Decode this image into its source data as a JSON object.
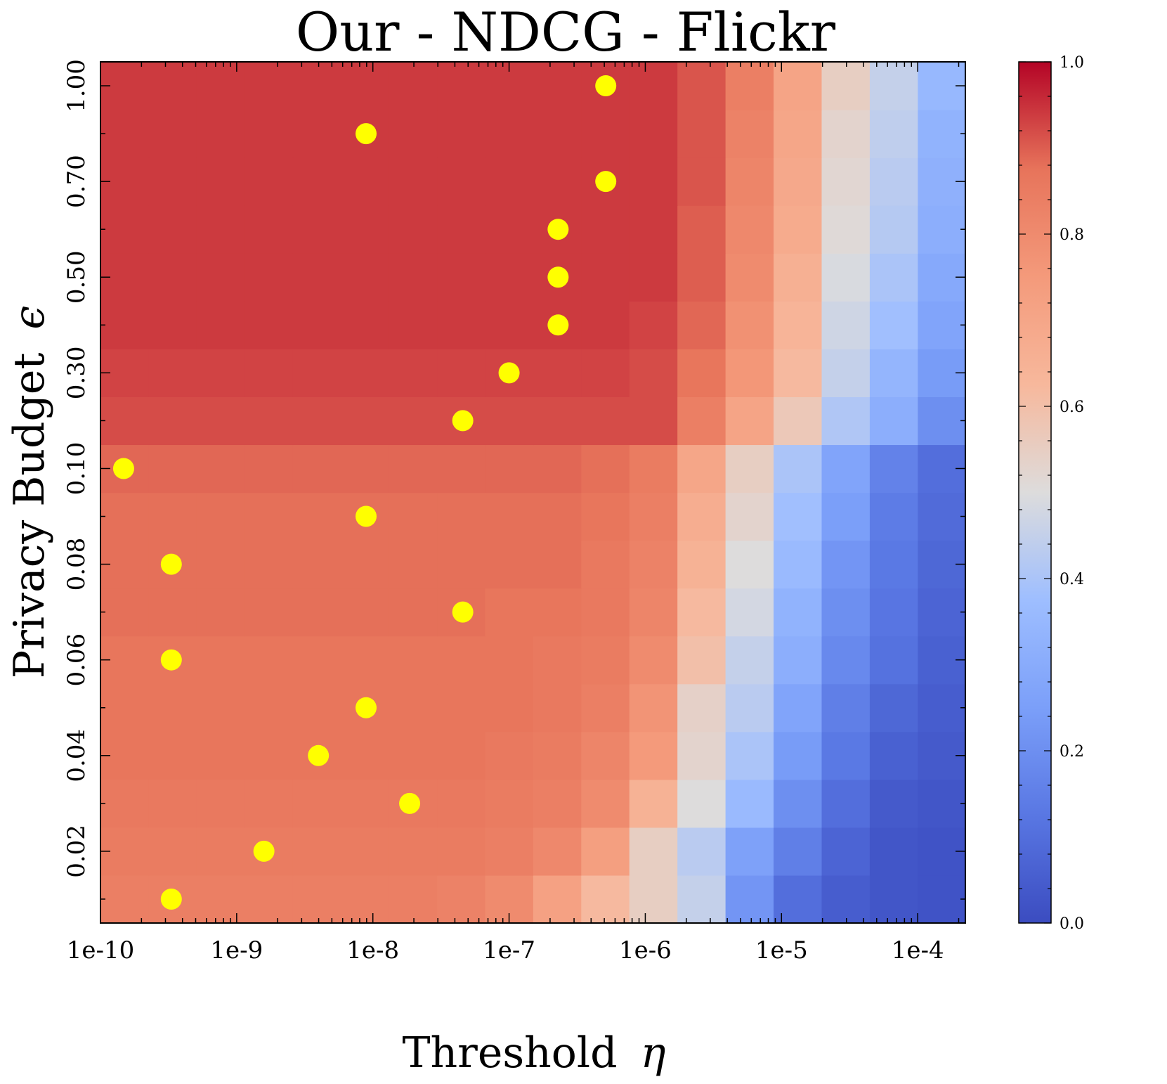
{
  "chart_data": {
    "type": "heatmap",
    "title": "Our - NDCG - Flickr",
    "xlabel": "Threshold",
    "xlabel_symbol": "η",
    "ylabel": "Privacy Budget",
    "ylabel_symbol": "ϵ",
    "x_scale": "log",
    "x_range_log10": [
      -10.0,
      -3.65
    ],
    "x_ticks": [
      {
        "label": "1e-10",
        "log10": -10
      },
      {
        "label": "1e-9",
        "log10": -9
      },
      {
        "label": "1e-8",
        "log10": -8
      },
      {
        "label": "1e-7",
        "log10": -7
      },
      {
        "label": "1e-6",
        "log10": -6
      },
      {
        "label": "1e-5",
        "log10": -5
      },
      {
        "label": "1e-4",
        "log10": -4
      }
    ],
    "y_rows": [
      "0.01",
      "0.02",
      "0.03",
      "0.04",
      "0.05",
      "0.06",
      "0.07",
      "0.08",
      "0.09",
      "0.10",
      "0.20",
      "0.30",
      "0.40",
      "0.50",
      "0.60",
      "0.70",
      "0.80",
      "1.00"
    ],
    "y_tick_labels": [
      {
        "label": "0.02",
        "row": 1
      },
      {
        "label": "0.04",
        "row": 3
      },
      {
        "label": "0.06",
        "row": 5
      },
      {
        "label": "0.08",
        "row": 7
      },
      {
        "label": "0.10",
        "row": 9
      },
      {
        "label": "0.30",
        "row": 11
      },
      {
        "label": "0.50",
        "row": 13
      },
      {
        "label": "0.70",
        "row": 15
      },
      {
        "label": "1.00",
        "row": 17
      }
    ],
    "n_columns": 18,
    "column_log10_edges": [
      -10.0,
      -9.647,
      -9.294,
      -8.941,
      -8.588,
      -8.235,
      -7.882,
      -7.529,
      -7.176,
      -6.823,
      -6.47,
      -6.117,
      -5.764,
      -5.411,
      -5.058,
      -4.705,
      -4.352,
      -3.999,
      -3.65
    ],
    "values_by_row_bottom_to_top": [
      [
        0.84,
        0.84,
        0.84,
        0.84,
        0.84,
        0.84,
        0.84,
        0.83,
        0.8,
        0.72,
        0.62,
        0.55,
        0.45,
        0.22,
        0.1,
        0.05,
        0.03,
        0.02
      ],
      [
        0.85,
        0.85,
        0.85,
        0.85,
        0.85,
        0.85,
        0.85,
        0.85,
        0.84,
        0.81,
        0.73,
        0.55,
        0.43,
        0.26,
        0.15,
        0.07,
        0.03,
        0.02
      ],
      [
        0.86,
        0.86,
        0.86,
        0.86,
        0.86,
        0.86,
        0.86,
        0.86,
        0.85,
        0.84,
        0.8,
        0.65,
        0.5,
        0.36,
        0.2,
        0.1,
        0.04,
        0.03
      ],
      [
        0.87,
        0.87,
        0.87,
        0.87,
        0.87,
        0.87,
        0.87,
        0.87,
        0.86,
        0.85,
        0.82,
        0.75,
        0.53,
        0.4,
        0.24,
        0.13,
        0.06,
        0.04
      ],
      [
        0.87,
        0.87,
        0.87,
        0.87,
        0.87,
        0.87,
        0.87,
        0.87,
        0.87,
        0.86,
        0.84,
        0.77,
        0.54,
        0.43,
        0.27,
        0.15,
        0.08,
        0.05
      ],
      [
        0.87,
        0.87,
        0.87,
        0.87,
        0.87,
        0.87,
        0.87,
        0.87,
        0.87,
        0.86,
        0.85,
        0.8,
        0.6,
        0.45,
        0.31,
        0.18,
        0.11,
        0.06
      ],
      [
        0.88,
        0.88,
        0.88,
        0.88,
        0.88,
        0.88,
        0.88,
        0.88,
        0.87,
        0.87,
        0.86,
        0.82,
        0.62,
        0.48,
        0.33,
        0.2,
        0.12,
        0.07
      ],
      [
        0.88,
        0.88,
        0.88,
        0.88,
        0.88,
        0.88,
        0.88,
        0.88,
        0.88,
        0.88,
        0.86,
        0.83,
        0.65,
        0.5,
        0.36,
        0.22,
        0.13,
        0.08
      ],
      [
        0.88,
        0.88,
        0.88,
        0.88,
        0.88,
        0.88,
        0.88,
        0.88,
        0.88,
        0.88,
        0.87,
        0.84,
        0.67,
        0.53,
        0.38,
        0.25,
        0.14,
        0.09
      ],
      [
        0.89,
        0.89,
        0.89,
        0.89,
        0.89,
        0.89,
        0.89,
        0.89,
        0.89,
        0.89,
        0.88,
        0.85,
        0.7,
        0.55,
        0.4,
        0.27,
        0.16,
        0.1
      ],
      [
        0.92,
        0.92,
        0.92,
        0.92,
        0.92,
        0.92,
        0.92,
        0.92,
        0.92,
        0.92,
        0.92,
        0.92,
        0.84,
        0.71,
        0.57,
        0.41,
        0.31,
        0.2
      ],
      [
        0.93,
        0.93,
        0.93,
        0.93,
        0.93,
        0.93,
        0.93,
        0.93,
        0.93,
        0.93,
        0.93,
        0.92,
        0.87,
        0.76,
        0.62,
        0.45,
        0.34,
        0.24
      ],
      [
        0.94,
        0.94,
        0.94,
        0.94,
        0.94,
        0.94,
        0.94,
        0.94,
        0.94,
        0.94,
        0.94,
        0.93,
        0.89,
        0.78,
        0.64,
        0.47,
        0.38,
        0.27
      ],
      [
        0.94,
        0.94,
        0.94,
        0.94,
        0.94,
        0.94,
        0.94,
        0.94,
        0.94,
        0.94,
        0.94,
        0.94,
        0.9,
        0.8,
        0.66,
        0.49,
        0.4,
        0.29
      ],
      [
        0.94,
        0.94,
        0.94,
        0.94,
        0.94,
        0.94,
        0.94,
        0.94,
        0.94,
        0.94,
        0.94,
        0.94,
        0.9,
        0.81,
        0.68,
        0.51,
        0.42,
        0.31
      ],
      [
        0.94,
        0.94,
        0.94,
        0.94,
        0.94,
        0.94,
        0.94,
        0.94,
        0.94,
        0.94,
        0.94,
        0.94,
        0.91,
        0.82,
        0.69,
        0.52,
        0.43,
        0.32
      ],
      [
        0.94,
        0.94,
        0.94,
        0.94,
        0.94,
        0.94,
        0.94,
        0.94,
        0.94,
        0.94,
        0.94,
        0.94,
        0.91,
        0.83,
        0.7,
        0.53,
        0.44,
        0.33
      ],
      [
        0.94,
        0.94,
        0.94,
        0.94,
        0.94,
        0.94,
        0.94,
        0.94,
        0.94,
        0.94,
        0.94,
        0.94,
        0.91,
        0.84,
        0.71,
        0.55,
        0.45,
        0.35
      ]
    ],
    "markers": {
      "color": "#ffff00",
      "description": "optimal threshold per privacy budget",
      "points": [
        {
          "row": 0,
          "log10_x": -9.48
        },
        {
          "row": 1,
          "log10_x": -8.8
        },
        {
          "row": 2,
          "log10_x": -7.73
        },
        {
          "row": 3,
          "log10_x": -8.4
        },
        {
          "row": 4,
          "log10_x": -8.05
        },
        {
          "row": 5,
          "log10_x": -9.48
        },
        {
          "row": 6,
          "log10_x": -7.34
        },
        {
          "row": 7,
          "log10_x": -9.48
        },
        {
          "row": 8,
          "log10_x": -8.05
        },
        {
          "row": 9,
          "log10_x": -9.83
        },
        {
          "row": 10,
          "log10_x": -7.34
        },
        {
          "row": 11,
          "log10_x": -7.0
        },
        {
          "row": 12,
          "log10_x": -6.64
        },
        {
          "row": 13,
          "log10_x": -6.64
        },
        {
          "row": 14,
          "log10_x": -6.64
        },
        {
          "row": 15,
          "log10_x": -6.29
        },
        {
          "row": 16,
          "log10_x": -8.05
        },
        {
          "row": 17,
          "log10_x": -6.29
        }
      ]
    },
    "colormap": "coolwarm",
    "colorbar": {
      "range": [
        0.0,
        1.0
      ],
      "ticks": [
        "0.0",
        "0.2",
        "0.4",
        "0.6",
        "0.8",
        "1.0"
      ]
    }
  }
}
